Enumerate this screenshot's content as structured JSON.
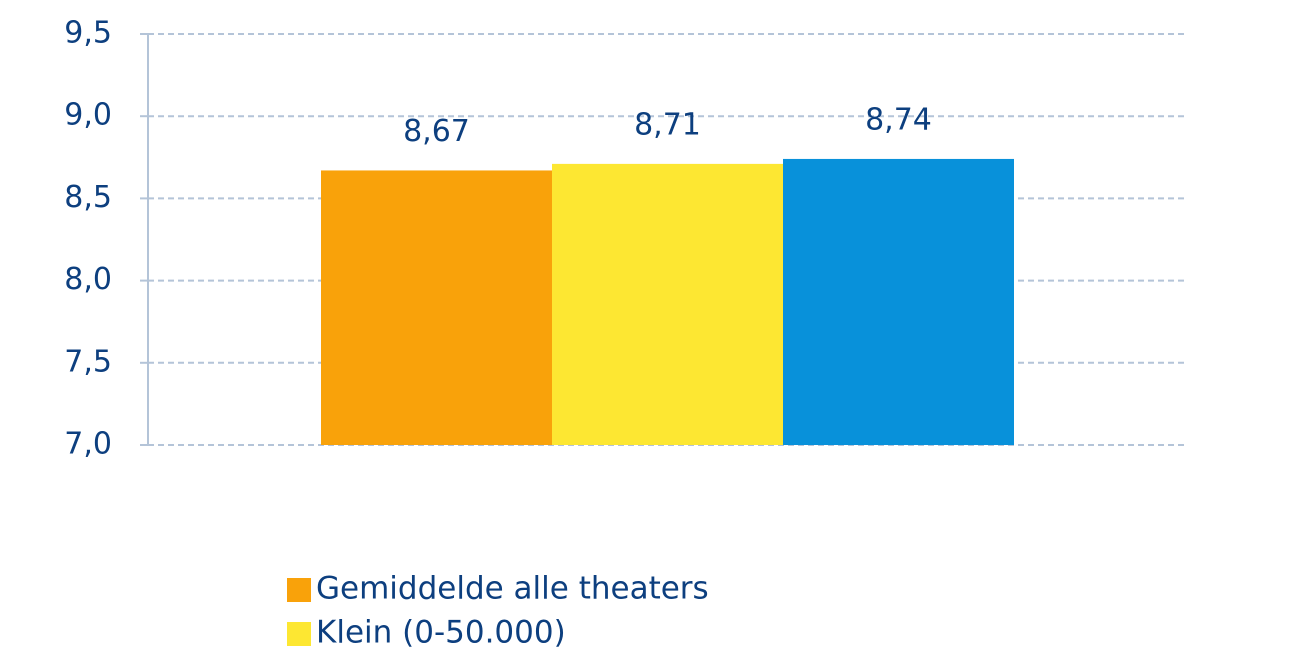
{
  "chart_data": {
    "type": "bar",
    "categories": [
      null
    ],
    "series": [
      {
        "name": "Gemiddelde alle theaters",
        "color": "#f9a20a",
        "values": [
          8.67
        ],
        "value_labels": [
          "8,67"
        ]
      },
      {
        "name": "Klein (0-50.000)",
        "color": "#fde732",
        "values": [
          8.71
        ],
        "value_labels": [
          "8,71"
        ]
      },
      {
        "color": "#0891da",
        "values": [
          8.74
        ],
        "value_labels": [
          "8,74"
        ]
      }
    ],
    "ylim": [
      7,
      9.5
    ],
    "yticks": [
      {
        "value": 7,
        "label": "7,0"
      },
      {
        "value": 7.5,
        "label": "7,5"
      },
      {
        "value": 8,
        "label": "8,0"
      },
      {
        "value": 8.5,
        "label": "8,5"
      },
      {
        "value": 9,
        "label": "9,0"
      },
      {
        "value": 9.5,
        "label": "9,5"
      }
    ],
    "grid": true
  }
}
